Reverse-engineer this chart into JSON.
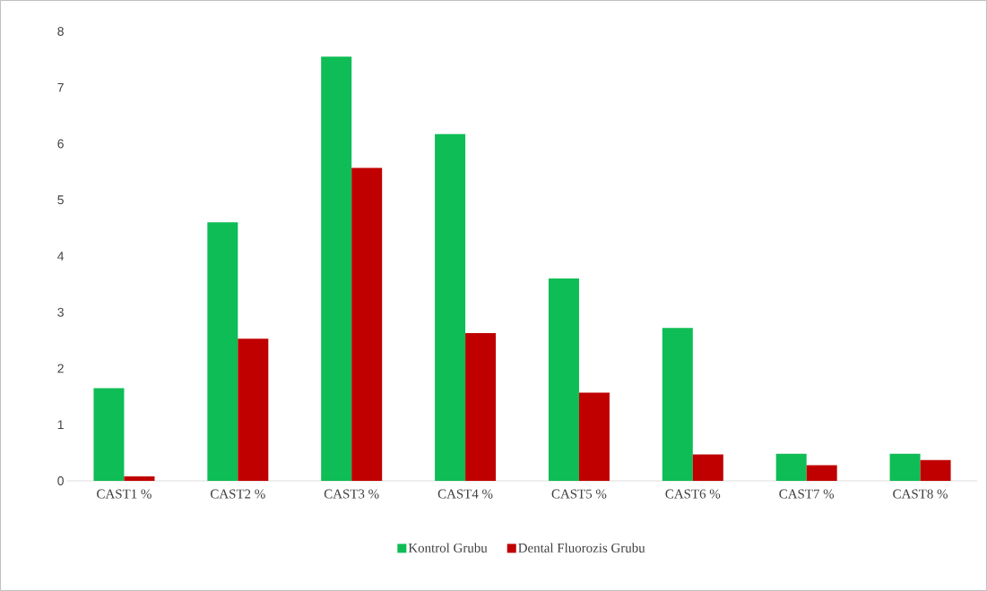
{
  "chart_data": {
    "type": "bar",
    "categories": [
      "CAST1 %",
      "CAST2 %",
      "CAST3 %",
      "CAST4 %",
      "CAST5 %",
      "CAST6 %",
      "CAST7 %",
      "CAST8 %"
    ],
    "series": [
      {
        "name": "Kontrol Grubu",
        "color": "#0ebd55",
        "values": [
          1.65,
          4.6,
          7.55,
          6.17,
          3.6,
          2.72,
          0.48,
          0.48
        ]
      },
      {
        "name": "Dental Fluorozis Grubu",
        "color": "#c00000",
        "values": [
          0.08,
          2.53,
          5.57,
          2.63,
          1.57,
          0.47,
          0.28,
          0.37
        ]
      }
    ],
    "ylim": [
      0,
      8
    ],
    "yticks": [
      0,
      1,
      2,
      3,
      4,
      5,
      6,
      7,
      8
    ],
    "grid": false,
    "legend": "bottom"
  }
}
